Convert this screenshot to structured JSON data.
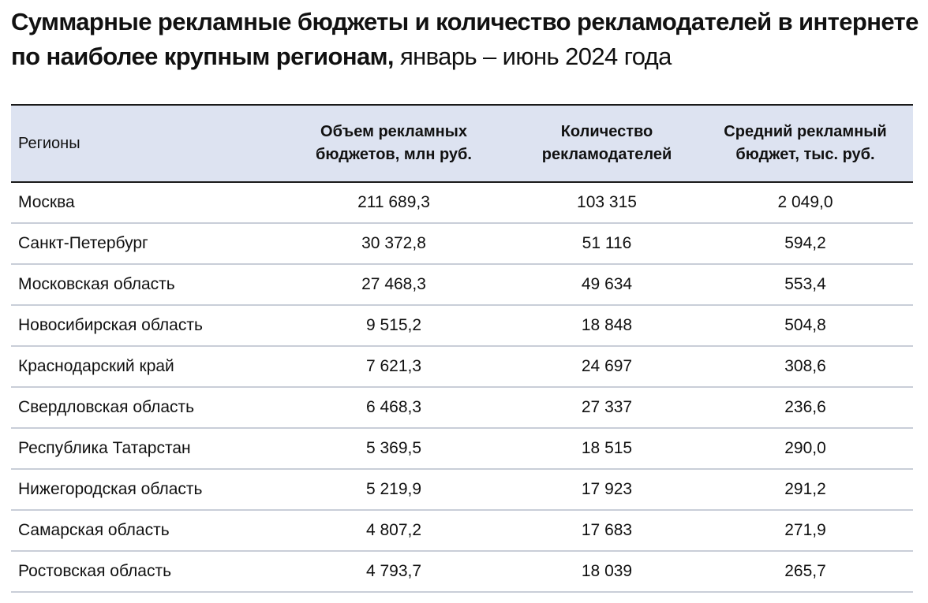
{
  "title": {
    "bold": "Суммарные рекламные бюджеты и количество рекламодателей в интернете по наиболее крупным регионам,",
    "normal": " январь – июнь 2024 года"
  },
  "table": {
    "columns": [
      "Регионы",
      "Объем рекламных\nбюджетов, млн руб.",
      "Количество\nрекламодателей",
      "Средний рекламный\nбюджет, тыс. руб."
    ],
    "rows": [
      {
        "region": "Москва",
        "budget": "211 689,3",
        "advertisers": "103 315",
        "avg": "2 049,0"
      },
      {
        "region": "Санкт-Петербург",
        "budget": "30 372,8",
        "advertisers": "51 116",
        "avg": "594,2"
      },
      {
        "region": "Московская область",
        "budget": "27 468,3",
        "advertisers": "49 634",
        "avg": "553,4"
      },
      {
        "region": "Новосибирская область",
        "budget": "9 515,2",
        "advertisers": "18 848",
        "avg": "504,8"
      },
      {
        "region": "Краснодарский край",
        "budget": "7 621,3",
        "advertisers": "24 697",
        "avg": "308,6"
      },
      {
        "region": "Свердловская область",
        "budget": "6 468,3",
        "advertisers": "27 337",
        "avg": "236,6"
      },
      {
        "region": "Республика Татарстан",
        "budget": "5 369,5",
        "advertisers": "18 515",
        "avg": "290,0"
      },
      {
        "region": "Нижегородская область",
        "budget": "5 219,9",
        "advertisers": "17 923",
        "avg": "291,2"
      },
      {
        "region": "Самарская область",
        "budget": "4 807,2",
        "advertisers": "17 683",
        "avg": "271,9"
      },
      {
        "region": "Ростовская область",
        "budget": "4 793,7",
        "advertisers": "18 039",
        "avg": "265,7"
      }
    ]
  }
}
